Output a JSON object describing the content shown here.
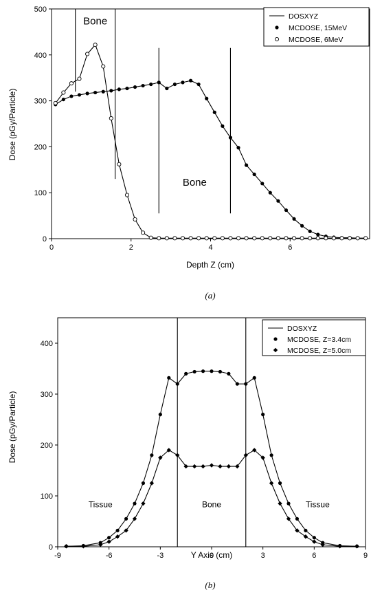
{
  "chart_data": [
    {
      "type": "line",
      "panel": "(a)",
      "xlabel": "Depth Z (cm)",
      "ylabel": "Dose (pGy/Particle)",
      "xlim": [
        0,
        8
      ],
      "ylim": [
        0,
        500
      ],
      "xticks": [
        0,
        2,
        4,
        6
      ],
      "yticks": [
        0,
        100,
        200,
        300,
        400,
        500
      ],
      "legend_position": "top-right",
      "legend": [
        {
          "label": "DOSXYZ",
          "marker": "line"
        },
        {
          "label": "MCDOSE, 15MeV",
          "marker": "filled-circle"
        },
        {
          "label": "MCDOSE, 6MeV",
          "marker": "open-circle"
        }
      ],
      "series": [
        {
          "name": "MCDOSE, 15MeV",
          "marker": "filled-circle",
          "x": [
            0.1,
            0.3,
            0.5,
            0.7,
            0.9,
            1.1,
            1.3,
            1.5,
            1.7,
            1.9,
            2.1,
            2.3,
            2.5,
            2.7,
            2.9,
            3.1,
            3.3,
            3.5,
            3.7,
            3.9,
            4.1,
            4.3,
            4.5,
            4.7,
            4.9,
            5.1,
            5.3,
            5.5,
            5.7,
            5.9,
            6.1,
            6.3,
            6.5,
            6.7,
            6.9,
            7.1,
            7.3,
            7.5,
            7.7,
            7.9
          ],
          "y": [
            292,
            303,
            310,
            313,
            316,
            318,
            320,
            322,
            325,
            327,
            330,
            333,
            336,
            340,
            327,
            336,
            340,
            344,
            336,
            305,
            275,
            245,
            220,
            198,
            160,
            140,
            120,
            100,
            82,
            62,
            43,
            28,
            16,
            9,
            5,
            3,
            2,
            2,
            1,
            1
          ]
        },
        {
          "name": "MCDOSE, 6MeV",
          "marker": "open-circle",
          "x": [
            0.1,
            0.3,
            0.5,
            0.7,
            0.9,
            1.1,
            1.3,
            1.5,
            1.7,
            1.9,
            2.1,
            2.3,
            2.5,
            2.7,
            2.9,
            3.1,
            3.3,
            3.5,
            3.7,
            3.9,
            4.1,
            4.3,
            4.5,
            4.7,
            4.9,
            5.1,
            5.3,
            5.5,
            5.7,
            5.9,
            6.1,
            6.3,
            6.5,
            6.7,
            6.9,
            7.1,
            7.3,
            7.5,
            7.7,
            7.9
          ],
          "y": [
            295,
            318,
            338,
            348,
            402,
            422,
            375,
            262,
            162,
            95,
            42,
            13,
            2,
            1,
            1,
            1,
            1,
            1,
            1,
            1,
            1,
            1,
            1,
            1,
            1,
            1,
            1,
            1,
            1,
            1,
            1,
            1,
            1,
            1,
            1,
            1,
            1,
            1,
            1,
            1
          ]
        }
      ],
      "bone_boundaries": [
        {
          "x": 0.6,
          "y_from": 320,
          "y_to": 500
        },
        {
          "x": 1.6,
          "y_from": 130,
          "y_to": 500
        },
        {
          "x": 2.7,
          "y_from": 55,
          "y_to": 415
        },
        {
          "x": 4.5,
          "y_from": 55,
          "y_to": 415
        }
      ],
      "annotations": [
        {
          "text": "Bone",
          "x": 1.1,
          "y": 466
        },
        {
          "text": "Bone",
          "x": 3.6,
          "y": 115
        }
      ],
      "caption": "(a)"
    },
    {
      "type": "line",
      "panel": "(b)",
      "xlabel": "Y Axis (cm)",
      "ylabel": "Dose (pGy/Particle)",
      "xlim": [
        -9,
        9
      ],
      "ylim": [
        0,
        450
      ],
      "xticks": [
        -9,
        -6,
        -3,
        0,
        3,
        6,
        9
      ],
      "yticks": [
        0,
        100,
        200,
        300,
        400
      ],
      "legend_position": "top-right",
      "legend": [
        {
          "label": "DOSXYZ",
          "marker": "line"
        },
        {
          "label": "MCDOSE, Z=3.4cm",
          "marker": "filled-circle"
        },
        {
          "label": "MCDOSE, Z=5.0cm",
          "marker": "filled-diamond"
        }
      ],
      "series": [
        {
          "name": "MCDOSE, Z=3.4cm",
          "marker": "filled-circle",
          "x": [
            -8.5,
            -7.5,
            -6.5,
            -6,
            -5.5,
            -5,
            -4.5,
            -4,
            -3.5,
            -3,
            -2.5,
            -2,
            -1.5,
            -1,
            -0.5,
            0,
            0.5,
            1,
            1.5,
            2,
            2.5,
            3,
            3.5,
            4,
            4.5,
            5,
            5.5,
            6,
            6.5,
            7.5,
            8.5
          ],
          "y": [
            1,
            2,
            8,
            18,
            32,
            55,
            85,
            125,
            180,
            260,
            332,
            320,
            340,
            344,
            345,
            345,
            344,
            340,
            320,
            320,
            332,
            260,
            180,
            125,
            85,
            55,
            32,
            18,
            8,
            2,
            1
          ]
        },
        {
          "name": "MCDOSE, Z=5.0cm",
          "marker": "filled-diamond",
          "x": [
            -8.5,
            -7.5,
            -6.5,
            -6,
            -5.5,
            -5,
            -4.5,
            -4,
            -3.5,
            -3,
            -2.5,
            -2,
            -1.5,
            -1,
            -0.5,
            0,
            0.5,
            1,
            1.5,
            2,
            2.5,
            3,
            3.5,
            4,
            4.5,
            5,
            5.5,
            6,
            6.5,
            7.5,
            8.5
          ],
          "y": [
            1,
            1,
            4,
            10,
            20,
            32,
            55,
            85,
            125,
            175,
            190,
            180,
            158,
            158,
            158,
            160,
            158,
            158,
            158,
            180,
            190,
            175,
            125,
            85,
            55,
            32,
            20,
            10,
            4,
            1,
            1
          ]
        }
      ],
      "bone_boundaries": [
        {
          "x": -2,
          "y_from": 0,
          "y_to": 450
        },
        {
          "x": 2,
          "y_from": 0,
          "y_to": 450
        }
      ],
      "annotations": [
        {
          "text": "Tissue",
          "x": -6.5,
          "y": 78
        },
        {
          "text": "Bone",
          "x": 0,
          "y": 78
        },
        {
          "text": "Tissue",
          "x": 6.2,
          "y": 78
        }
      ],
      "caption": "(b)"
    }
  ]
}
